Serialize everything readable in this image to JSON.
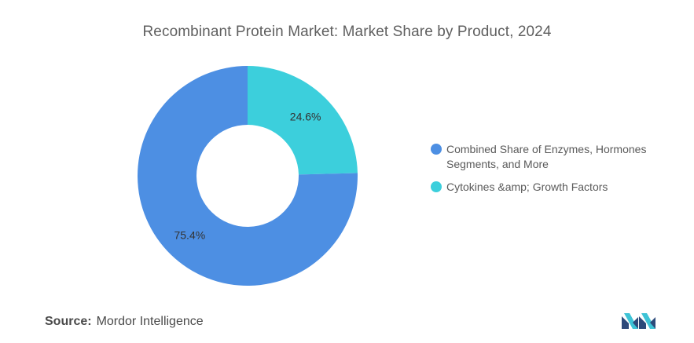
{
  "chart_data": {
    "type": "pie",
    "title": "Recombinant Protein Market: Market Share by Product, 2024",
    "series": [
      {
        "name": "Combined Share of Enzymes, Hormones Segments, and More",
        "value": 75.4,
        "label": "75.4%",
        "color": "#4d8fe3"
      },
      {
        "name": "Cytokines &amp; Growth Factors",
        "value": 24.6,
        "label": "24.6%",
        "color": "#3ccfdc"
      }
    ],
    "legend_position": "right"
  },
  "source": {
    "label": "Source:",
    "text": "Mordor Intelligence"
  }
}
